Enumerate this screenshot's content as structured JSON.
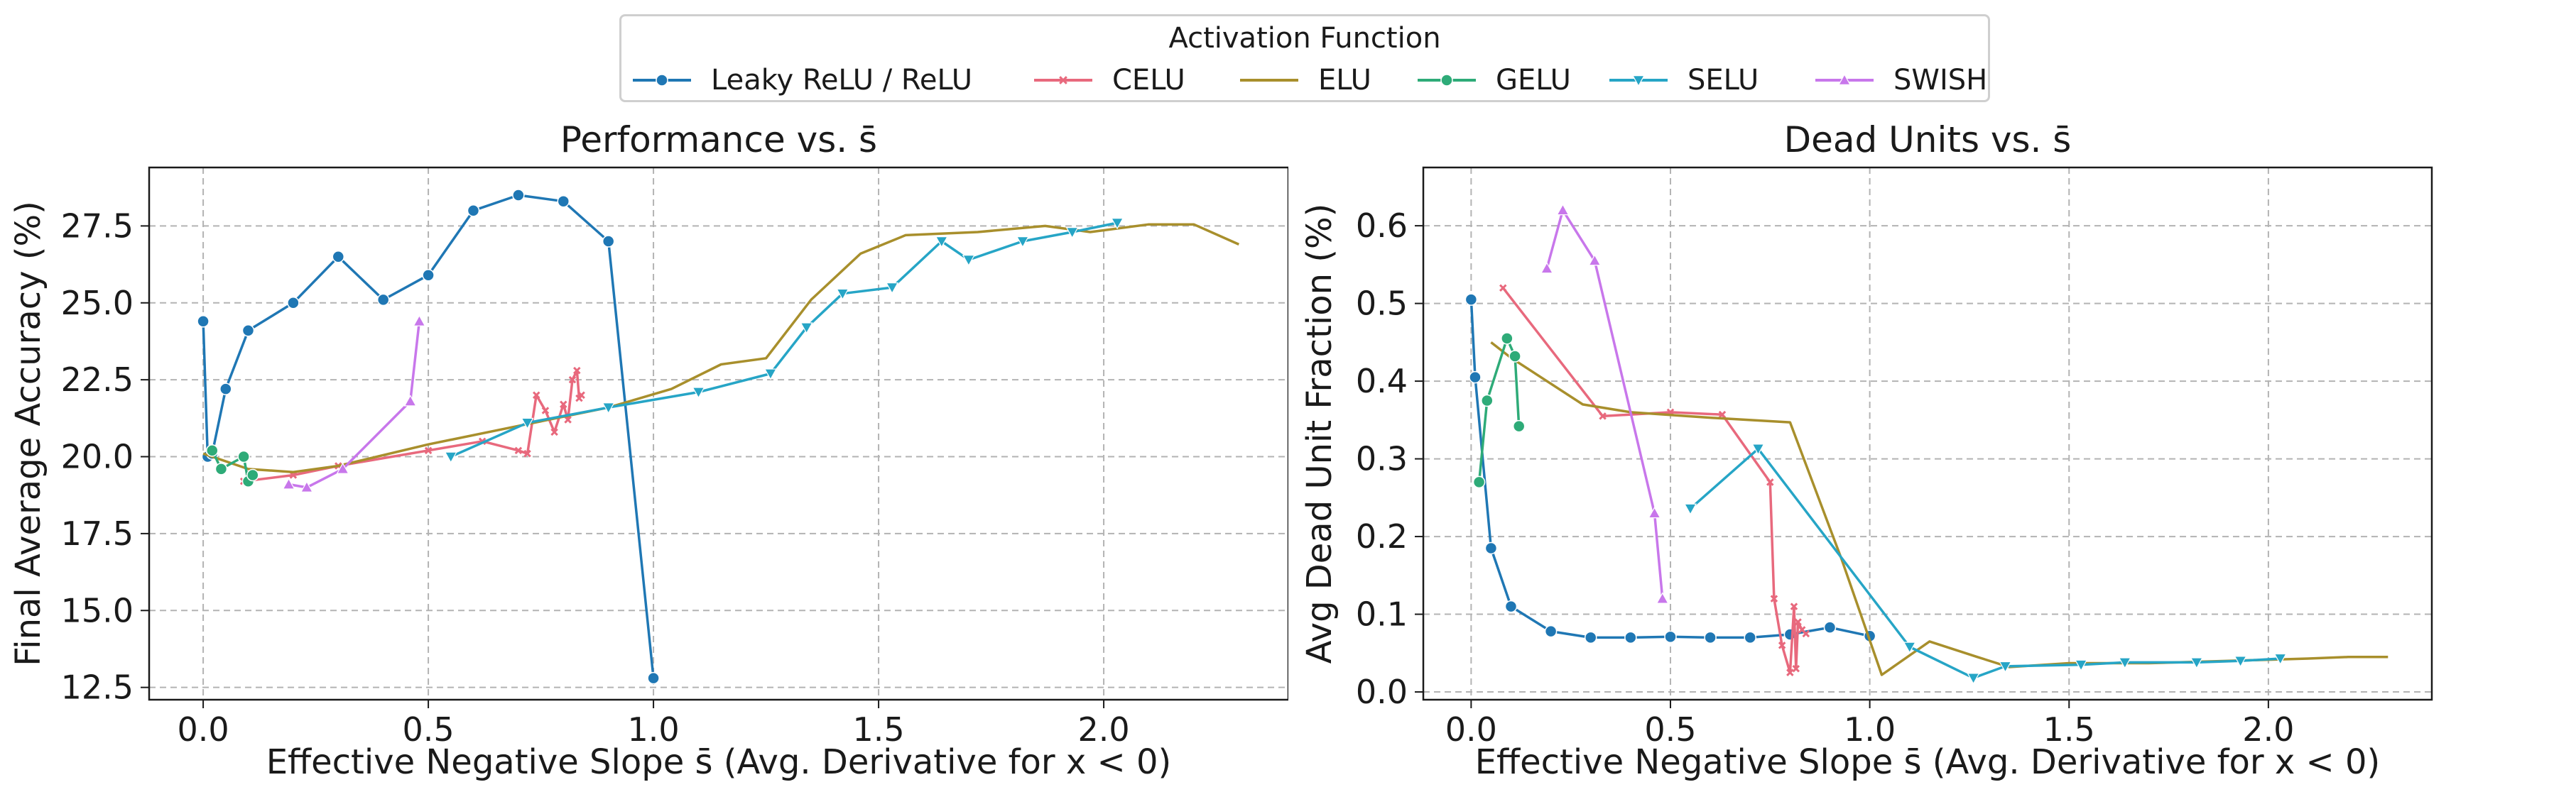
{
  "legend": {
    "title": "Activation Function",
    "entries": [
      {
        "label": "Leaky ReLU / ReLU",
        "color": "#1f77b4",
        "marker": "circle"
      },
      {
        "label": "CELU",
        "color": "#e8697d",
        "marker": "x"
      },
      {
        "label": "ELU",
        "color": "#a88f2c",
        "marker": "none"
      },
      {
        "label": "GELU",
        "color": "#2eab78",
        "marker": "circle"
      },
      {
        "label": "SELU",
        "color": "#26a5c6",
        "marker": "tri-down"
      },
      {
        "label": "SWISH",
        "color": "#c877eb",
        "marker": "tri-up"
      }
    ]
  },
  "panels": [
    {
      "title": "Performance vs. s̄",
      "ylabel": "Final Average Accuracy (%)",
      "xlabel": "Effective Negative Slope s̄ (Avg. Derivative for x < 0)"
    },
    {
      "title": "Dead Units vs. s̄",
      "ylabel": "Avg Dead Unit Fraction (%)",
      "xlabel": "Effective Negative Slope s̄ (Avg. Derivative for x < 0)"
    }
  ],
  "chart_data": [
    {
      "type": "line",
      "title": "Performance vs. s̄",
      "xlabel": "Effective Negative Slope s̄ (Avg. Derivative for x < 0)",
      "ylabel": "Final Average Accuracy (%)",
      "xlim": [
        -0.12,
        2.41
      ],
      "ylim": [
        12.1,
        29.4
      ],
      "xticks": [
        0.0,
        0.5,
        1.0,
        1.5,
        2.0
      ],
      "xtick_labels": [
        "0.0",
        "0.5",
        "1.0",
        "1.5",
        "2.0"
      ],
      "yticks": [
        12.5,
        15.0,
        17.5,
        20.0,
        22.5,
        25.0,
        27.5
      ],
      "ytick_labels": [
        "12.5",
        "15.0",
        "17.5",
        "20.0",
        "22.5",
        "25.0",
        "27.5"
      ],
      "grid": true,
      "series": [
        {
          "name": "Leaky ReLU / ReLU",
          "points": [
            [
              0.0,
              24.4
            ],
            [
              0.01,
              20.0
            ],
            [
              0.02,
              20.1
            ],
            [
              0.05,
              22.2
            ],
            [
              0.1,
              24.1
            ],
            [
              0.2,
              25.0
            ],
            [
              0.3,
              26.5
            ],
            [
              0.4,
              25.1
            ],
            [
              0.5,
              25.9
            ],
            [
              0.6,
              28.0
            ],
            [
              0.7,
              28.5
            ],
            [
              0.8,
              28.3
            ],
            [
              0.9,
              27.0
            ],
            [
              1.0,
              12.8
            ]
          ]
        },
        {
          "name": "CELU",
          "points": [
            [
              0.09,
              19.2
            ],
            [
              0.2,
              19.4
            ],
            [
              0.3,
              19.7
            ],
            [
              0.5,
              20.2
            ],
            [
              0.62,
              20.5
            ],
            [
              0.7,
              20.2
            ],
            [
              0.72,
              20.1
            ],
            [
              0.74,
              22.0
            ],
            [
              0.76,
              21.5
            ],
            [
              0.78,
              20.8
            ],
            [
              0.8,
              21.7
            ],
            [
              0.81,
              21.2
            ],
            [
              0.82,
              22.5
            ],
            [
              0.83,
              22.8
            ],
            [
              0.835,
              21.9
            ],
            [
              0.84,
              22.0
            ]
          ]
        },
        {
          "name": "ELU",
          "points": [
            [
              0.0,
              20.1
            ],
            [
              0.1,
              19.6
            ],
            [
              0.2,
              19.5
            ],
            [
              0.3,
              19.7
            ],
            [
              0.5,
              20.4
            ],
            [
              0.7,
              21.0
            ],
            [
              0.9,
              21.6
            ],
            [
              1.04,
              22.2
            ],
            [
              1.15,
              23.0
            ],
            [
              1.25,
              23.2
            ],
            [
              1.35,
              25.1
            ],
            [
              1.46,
              26.6
            ],
            [
              1.56,
              27.2
            ],
            [
              1.72,
              27.3
            ],
            [
              1.87,
              27.5
            ],
            [
              1.97,
              27.3
            ],
            [
              2.1,
              27.55
            ],
            [
              2.2,
              27.55
            ],
            [
              2.3,
              26.9
            ]
          ]
        },
        {
          "name": "GELU",
          "points": [
            [
              0.02,
              20.2
            ],
            [
              0.04,
              19.6
            ],
            [
              0.09,
              20.0
            ],
            [
              0.1,
              19.2
            ],
            [
              0.11,
              19.4
            ]
          ]
        },
        {
          "name": "SELU",
          "points": [
            [
              0.55,
              20.0
            ],
            [
              0.72,
              21.1
            ],
            [
              0.9,
              21.6
            ],
            [
              1.1,
              22.1
            ],
            [
              1.26,
              22.7
            ],
            [
              1.34,
              24.2
            ],
            [
              1.42,
              25.3
            ],
            [
              1.53,
              25.5
            ],
            [
              1.64,
              27.0
            ],
            [
              1.7,
              26.4
            ],
            [
              1.82,
              27.0
            ],
            [
              1.93,
              27.3
            ],
            [
              2.03,
              27.6
            ]
          ]
        },
        {
          "name": "SWISH",
          "points": [
            [
              0.19,
              19.1
            ],
            [
              0.23,
              19.0
            ],
            [
              0.31,
              19.6
            ],
            [
              0.46,
              21.8
            ],
            [
              0.48,
              24.4
            ]
          ]
        }
      ]
    },
    {
      "type": "line",
      "title": "Dead Units vs. s̄",
      "xlabel": "Effective Negative Slope s̄ (Avg. Derivative for x < 0)",
      "ylabel": "Avg Dead Unit Fraction (%)",
      "xlim": [
        -0.12,
        2.41
      ],
      "ylim": [
        -0.01,
        0.675
      ],
      "xticks": [
        0.0,
        0.5,
        1.0,
        1.5,
        2.0
      ],
      "xtick_labels": [
        "0.0",
        "0.5",
        "1.0",
        "1.5",
        "2.0"
      ],
      "yticks": [
        0.0,
        0.1,
        0.2,
        0.3,
        0.4,
        0.5,
        0.6
      ],
      "ytick_labels": [
        "0.0",
        "0.1",
        "0.2",
        "0.3",
        "0.4",
        "0.5",
        "0.6"
      ],
      "grid": true,
      "series": [
        {
          "name": "Leaky ReLU / ReLU",
          "points": [
            [
              0.0,
              0.505
            ],
            [
              0.01,
              0.405
            ],
            [
              0.05,
              0.185
            ],
            [
              0.1,
              0.11
            ],
            [
              0.2,
              0.078
            ],
            [
              0.3,
              0.07
            ],
            [
              0.4,
              0.07
            ],
            [
              0.5,
              0.071
            ],
            [
              0.6,
              0.07
            ],
            [
              0.7,
              0.07
            ],
            [
              0.8,
              0.074
            ],
            [
              0.9,
              0.083
            ],
            [
              1.0,
              0.072
            ]
          ]
        },
        {
          "name": "CELU",
          "points": [
            [
              0.08,
              0.52
            ],
            [
              0.33,
              0.355
            ],
            [
              0.5,
              0.36
            ],
            [
              0.63,
              0.357
            ],
            [
              0.75,
              0.27
            ],
            [
              0.76,
              0.12
            ],
            [
              0.78,
              0.06
            ],
            [
              0.8,
              0.025
            ],
            [
              0.81,
              0.11
            ],
            [
              0.815,
              0.03
            ],
            [
              0.82,
              0.09
            ],
            [
              0.83,
              0.08
            ],
            [
              0.84,
              0.075
            ]
          ]
        },
        {
          "name": "ELU",
          "points": [
            [
              0.05,
              0.45
            ],
            [
              0.1,
              0.43
            ],
            [
              0.28,
              0.37
            ],
            [
              0.4,
              0.36
            ],
            [
              0.6,
              0.353
            ],
            [
              0.8,
              0.347
            ],
            [
              0.93,
              0.17
            ],
            [
              1.03,
              0.022
            ],
            [
              1.15,
              0.065
            ],
            [
              1.27,
              0.045
            ],
            [
              1.35,
              0.032
            ],
            [
              1.5,
              0.037
            ],
            [
              1.7,
              0.037
            ],
            [
              1.9,
              0.04
            ],
            [
              2.1,
              0.043
            ],
            [
              2.2,
              0.045
            ],
            [
              2.3,
              0.045
            ]
          ]
        },
        {
          "name": "GELU",
          "points": [
            [
              0.02,
              0.27
            ],
            [
              0.04,
              0.375
            ],
            [
              0.09,
              0.455
            ],
            [
              0.11,
              0.432
            ],
            [
              0.12,
              0.342
            ]
          ]
        },
        {
          "name": "SELU",
          "points": [
            [
              0.55,
              0.236
            ],
            [
              0.72,
              0.313
            ],
            [
              1.1,
              0.058
            ],
            [
              1.26,
              0.018
            ],
            [
              1.34,
              0.033
            ],
            [
              1.53,
              0.035
            ],
            [
              1.64,
              0.038
            ],
            [
              1.82,
              0.038
            ],
            [
              1.93,
              0.04
            ],
            [
              2.03,
              0.043
            ]
          ]
        },
        {
          "name": "SWISH",
          "points": [
            [
              0.19,
              0.545
            ],
            [
              0.23,
              0.62
            ],
            [
              0.31,
              0.555
            ],
            [
              0.46,
              0.23
            ],
            [
              0.48,
              0.12
            ]
          ]
        }
      ]
    }
  ]
}
